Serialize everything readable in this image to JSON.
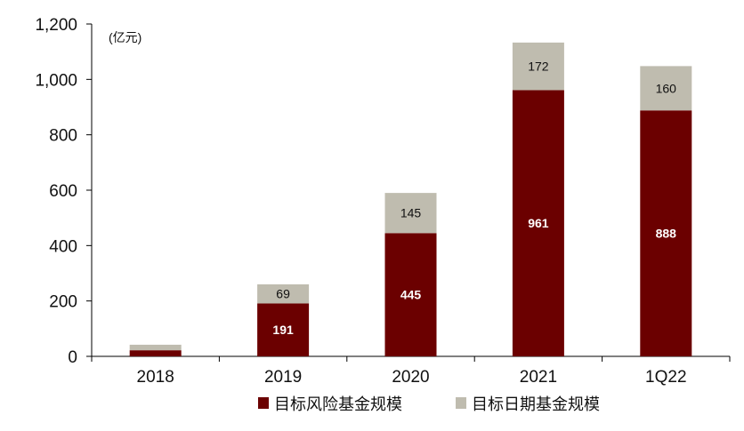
{
  "chart_data": {
    "type": "bar",
    "stacked": true,
    "unit_label": "(亿元)",
    "categories": [
      "2018",
      "2019",
      "2020",
      "2021",
      "1Q22"
    ],
    "series": [
      {
        "name": "目标风险基金规模",
        "color": "#6b0000",
        "values": [
          22,
          191,
          445,
          961,
          888
        ],
        "labels": [
          "",
          "191",
          "445",
          "961",
          "888"
        ]
      },
      {
        "name": "目标日期基金规模",
        "color": "#bfbcaf",
        "values": [
          20,
          69,
          145,
          172,
          160
        ],
        "labels": [
          "",
          "69",
          "145",
          "172",
          "160"
        ]
      }
    ],
    "ylim": [
      0,
      1200
    ],
    "yticks": [
      "0",
      "200",
      "400",
      "600",
      "800",
      "1,000",
      "1,200"
    ],
    "grid": false,
    "legend_position": "bottom"
  }
}
